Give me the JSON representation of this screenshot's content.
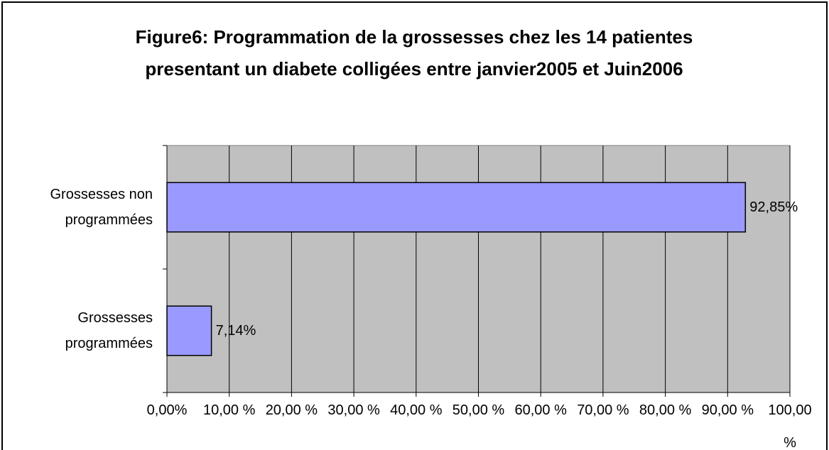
{
  "chart_data": {
    "type": "bar",
    "orientation": "horizontal",
    "title": "Figure6: Programmation de la grossesses chez les 14 patientes presentant un diabete colligées entre janvier2005 et Juin2006",
    "categories": [
      "Grossesses non programmées",
      "Grossesses programmées"
    ],
    "values": [
      92.85,
      7.14
    ],
    "value_labels": [
      "92,85%",
      "7,14%"
    ],
    "color": "#9999ff",
    "xlim": [
      0,
      100
    ],
    "xticks": [
      {
        "value": 0,
        "label": "0,00%"
      },
      {
        "value": 10,
        "label": "10,00 %"
      },
      {
        "value": 20,
        "label": "20,00 %"
      },
      {
        "value": 30,
        "label": "30,00 %"
      },
      {
        "value": 40,
        "label": "40,00 %"
      },
      {
        "value": 50,
        "label": "50,00 %"
      },
      {
        "value": 60,
        "label": "60,00 %"
      },
      {
        "value": 70,
        "label": "70,00 %"
      },
      {
        "value": 80,
        "label": "80,00 %"
      },
      {
        "value": 90,
        "label": "90,00 %"
      },
      {
        "value": 100,
        "label": "100,00 %"
      }
    ],
    "grid": true
  }
}
